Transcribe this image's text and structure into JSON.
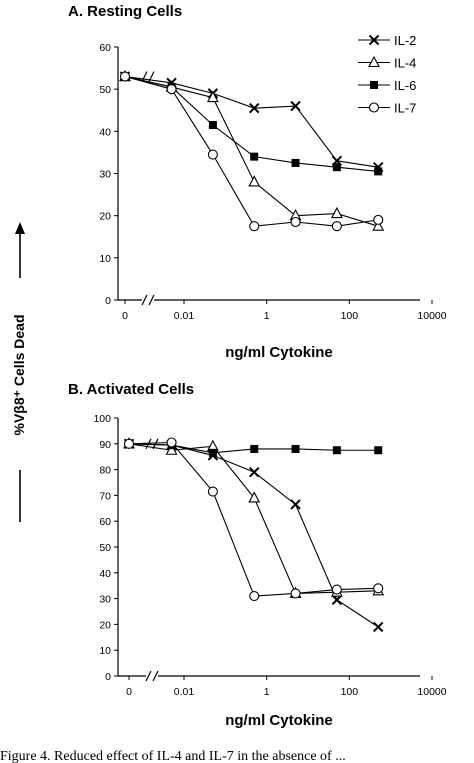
{
  "figure": {
    "shared_ylabel": "%Vβ8⁺ Cells Dead",
    "caption": "Figure 4.  Reduced effect of IL-4 and IL-7 in the absence of ..."
  },
  "chart_data": [
    {
      "type": "line",
      "title": "A. Resting Cells",
      "xlabel": "ng/ml Cytokine",
      "ylabel": "",
      "x_scale": "log",
      "x_ticks": [
        "0",
        "0.01",
        "1",
        "100",
        "10000"
      ],
      "y_ticks": [
        "0",
        "10",
        "20",
        "30",
        "40",
        "50",
        "60"
      ],
      "ylim": [
        0,
        60
      ],
      "legend_position": "top-right",
      "series": [
        {
          "name": "IL-2",
          "marker": "x",
          "points": [
            [
              0,
              53
            ],
            [
              0.005,
              51.5
            ],
            [
              0.05,
              49
            ],
            [
              0.5,
              45.5
            ],
            [
              5,
              46
            ],
            [
              50,
              33
            ],
            [
              500,
              31.5
            ]
          ]
        },
        {
          "name": "IL-4",
          "marker": "open-triangle",
          "points": [
            [
              0,
              53
            ],
            [
              0.005,
              50.5
            ],
            [
              0.05,
              48
            ],
            [
              0.5,
              28
            ],
            [
              5,
              20
            ],
            [
              50,
              20.5
            ],
            [
              500,
              17.5
            ]
          ]
        },
        {
          "name": "IL-6",
          "marker": "filled-square",
          "points": [
            [
              0,
              53
            ],
            [
              0.005,
              50.5
            ],
            [
              0.05,
              41.5
            ],
            [
              0.5,
              34
            ],
            [
              5,
              32.5
            ],
            [
              50,
              31.5
            ],
            [
              500,
              30.5
            ]
          ]
        },
        {
          "name": "IL-7",
          "marker": "open-circle",
          "points": [
            [
              0,
              53
            ],
            [
              0.005,
              50
            ],
            [
              0.05,
              34.5
            ],
            [
              0.5,
              17.5
            ],
            [
              5,
              18.5
            ],
            [
              50,
              17.5
            ],
            [
              500,
              19
            ]
          ]
        }
      ]
    },
    {
      "type": "line",
      "title": "B. Activated Cells",
      "xlabel": "ng/ml Cytokine",
      "ylabel": "",
      "x_scale": "log",
      "x_ticks": [
        "0",
        "0.01",
        "1",
        "100",
        "10000"
      ],
      "y_ticks": [
        "0",
        "10",
        "20",
        "30",
        "40",
        "50",
        "60",
        "70",
        "80",
        "90",
        "100"
      ],
      "ylim": [
        0,
        100
      ],
      "series": [
        {
          "name": "IL-2",
          "marker": "x",
          "points": [
            [
              0,
              90
            ],
            [
              0.005,
              89.5
            ],
            [
              0.05,
              85.5
            ],
            [
              0.5,
              79
            ],
            [
              5,
              66.5
            ],
            [
              50,
              29.5
            ],
            [
              500,
              19
            ]
          ]
        },
        {
          "name": "IL-4",
          "marker": "open-triangle",
          "points": [
            [
              0,
              90
            ],
            [
              0.005,
              87.5
            ],
            [
              0.05,
              89
            ],
            [
              0.5,
              69
            ],
            [
              5,
              32
            ],
            [
              50,
              32.5
            ],
            [
              500,
              33
            ]
          ]
        },
        {
          "name": "IL-6",
          "marker": "filled-square",
          "points": [
            [
              0,
              90
            ],
            [
              0.005,
              89.5
            ],
            [
              0.05,
              86.5
            ],
            [
              0.5,
              88
            ],
            [
              5,
              88
            ],
            [
              50,
              87.5
            ],
            [
              500,
              87.5
            ]
          ]
        },
        {
          "name": "IL-7",
          "marker": "open-circle",
          "points": [
            [
              0,
              90
            ],
            [
              0.005,
              90.5
            ],
            [
              0.05,
              71.5
            ],
            [
              0.5,
              31
            ],
            [
              5,
              32
            ],
            [
              50,
              33.5
            ],
            [
              500,
              34
            ]
          ]
        }
      ]
    }
  ]
}
